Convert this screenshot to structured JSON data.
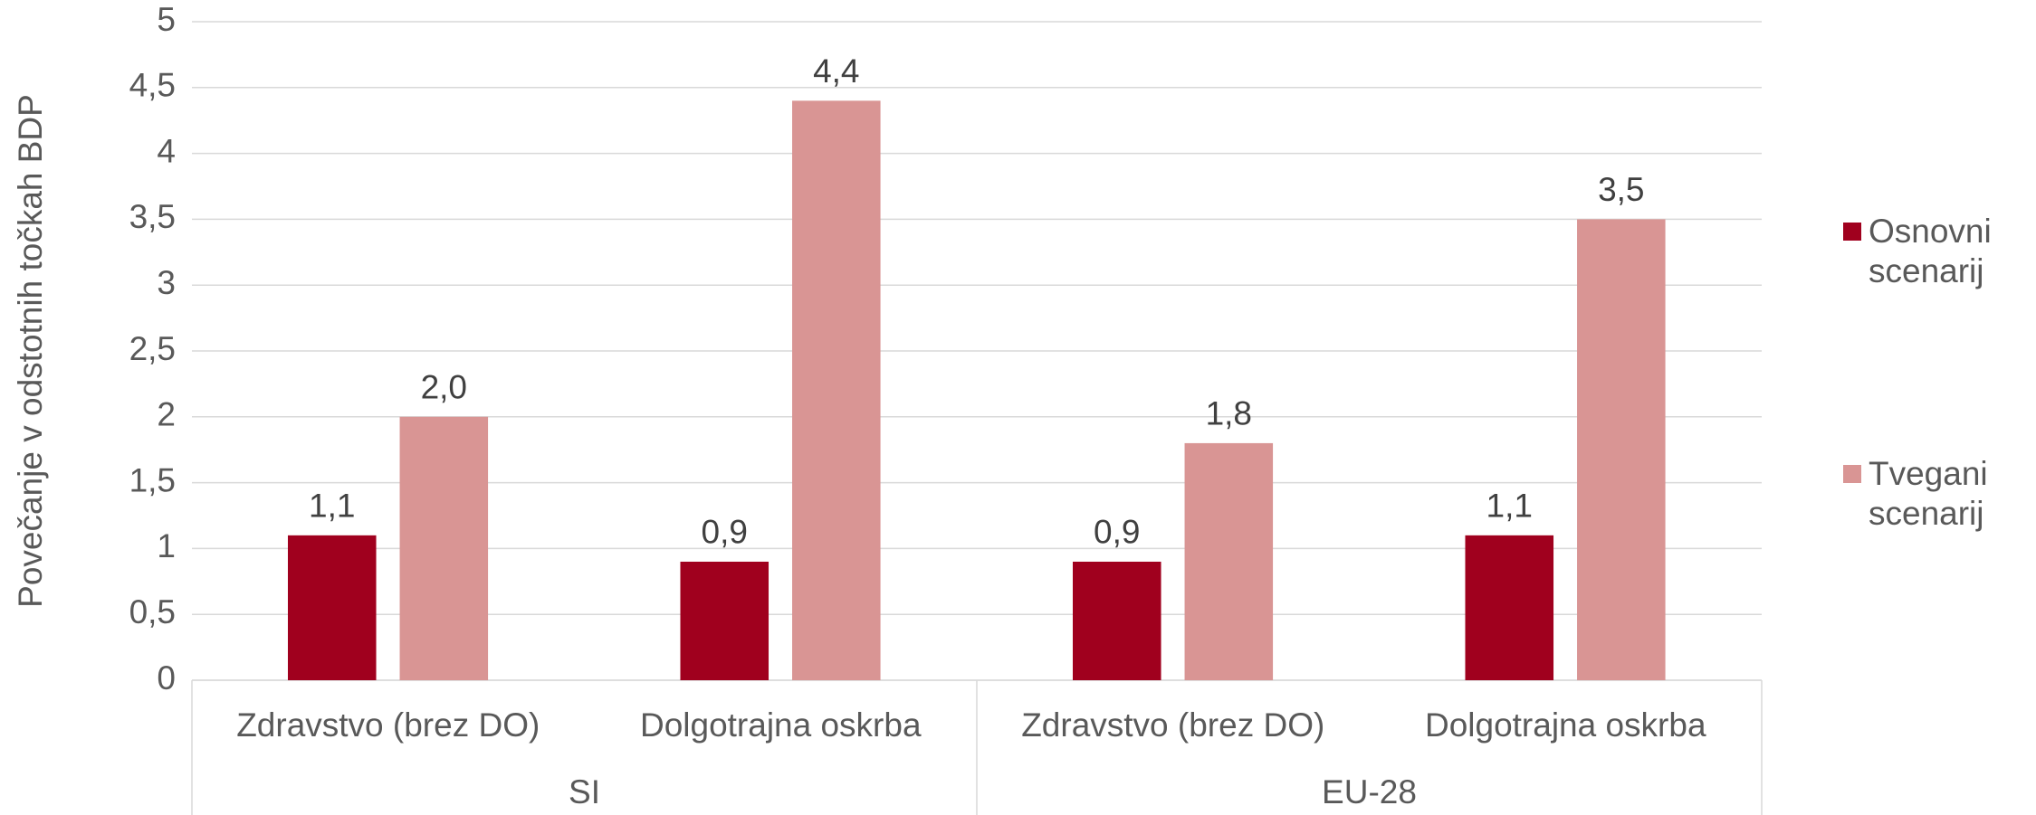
{
  "chart_data": {
    "type": "bar",
    "y_label": "Povečanje v odstotnih točkah BDP",
    "categories": [
      "Zdravstvo (brez DO)",
      "Dolgotrajna oskrba",
      "Zdravstvo (brez DO)",
      "Dolgotrajna oskrba"
    ],
    "groups": [
      "SI",
      "EU-28"
    ],
    "series": [
      {
        "name": "Osnovni scenarij",
        "color": "#a0001e",
        "values": [
          1.1,
          0.9,
          0.9,
          1.1
        ],
        "value_labels": [
          "1,1",
          "0,9",
          "0,9",
          "1,1"
        ]
      },
      {
        "name": "Tvegani scenarij",
        "color": "#d99594",
        "values": [
          2.0,
          4.4,
          1.8,
          3.5
        ],
        "value_labels": [
          "2,0",
          "4,4",
          "1,8",
          "3,5"
        ]
      }
    ],
    "ylim": [
      0,
      5
    ],
    "yticks": [
      0,
      {
        "value": 0.5,
        "label": "0,5"
      },
      1,
      {
        "value": 1.5,
        "label": "1,5"
      },
      2,
      {
        "value": 2.5,
        "label": "2,5"
      },
      3,
      {
        "value": 3.5,
        "label": "3,5"
      },
      4,
      {
        "value": 4.5,
        "label": "4,5"
      },
      5
    ],
    "grid": true,
    "legend": "right"
  }
}
